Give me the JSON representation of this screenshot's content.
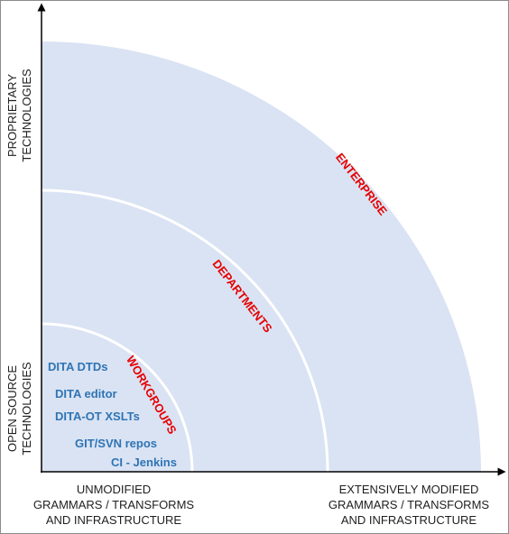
{
  "axes": {
    "y_top": [
      "PROPRIETARY",
      "TECHNOLOGIES"
    ],
    "y_bottom": [
      "OPEN SOURCE",
      "TECHNOLOGIES"
    ],
    "x_left": [
      "UNMODIFIED",
      "GRAMMARS / TRANSFORMS",
      "AND INFRASTRUCTURE"
    ],
    "x_right": [
      "EXTENSIVELY MODIFIED",
      "GRAMMARS / TRANSFORMS",
      "AND INFRASTRUCTURE"
    ]
  },
  "rings": {
    "enterprise": "ENTERPRISE",
    "departments": "DEPARTMENTS",
    "workgroups": "WORKGROUPS"
  },
  "technologies": [
    "DITA DTDs",
    "DITA editor",
    "DITA-OT XSLTs",
    "GIT/SVN repos",
    "CI - Jenkins"
  ],
  "colors": {
    "fill": "#dae3f3",
    "ring_label": "#e60000",
    "tech_text": "#2e74b5",
    "axis": "#000000"
  }
}
